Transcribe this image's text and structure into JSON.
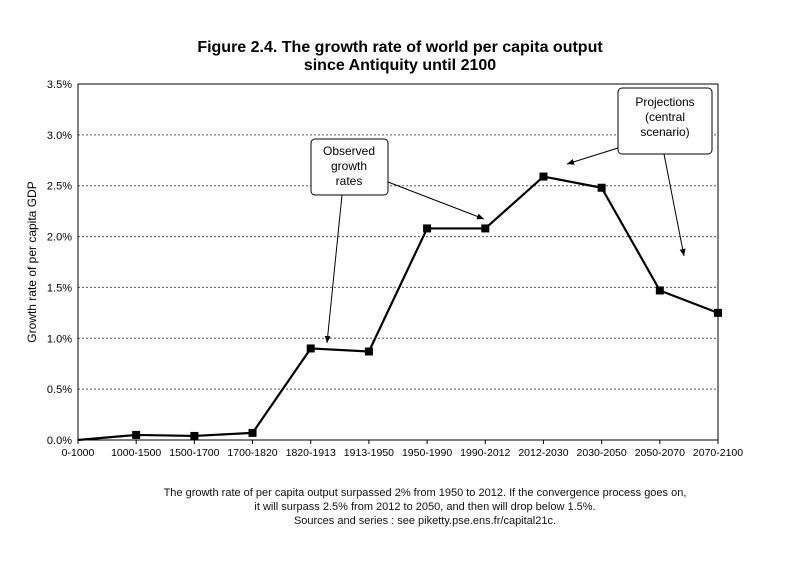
{
  "chart_data": {
    "type": "line",
    "title": "Figure 2.4. The growth rate of world per capita output",
    "subtitle": "since Antiquity until 2100",
    "ylabel": "Growth rate of per capita GDP",
    "xlabel": "",
    "categories": [
      "0-1000",
      "1000-1500",
      "1500-1700",
      "1700-1820",
      "1820-1913",
      "1913-1950",
      "1950-1990",
      "1990-2012",
      "2012-2030",
      "2030-2050",
      "2050-2070",
      "2070-2100"
    ],
    "series": [
      {
        "values": [
          0.0,
          0.05,
          0.04,
          0.07,
          0.9,
          0.87,
          2.08,
          2.08,
          2.59,
          2.48,
          1.47,
          1.25
        ]
      }
    ],
    "ylim": [
      0,
      3.5
    ],
    "yticks": [
      "0.0%",
      "0.5%",
      "1.0%",
      "1.5%",
      "2.0%",
      "2.5%",
      "3.0%",
      "3.5%"
    ],
    "grid": "horizontal dashed",
    "annotations": {
      "observed": [
        "Observed",
        "growth",
        "rates"
      ],
      "projections": [
        "Projections",
        "(central",
        "scenario)"
      ]
    },
    "colors": {
      "line": "#000000",
      "grid": "#555555"
    }
  },
  "caption": {
    "line1": "The growth rate of per capita output surpassed 2% from 1950 to 2012. If the convergence process goes on,",
    "line2": "it will surpass 2.5% from 2012 to 2050, and then will drop below 1.5%.",
    "line3": "Sources and series : see piketty.pse.ens.fr/capital21c."
  }
}
